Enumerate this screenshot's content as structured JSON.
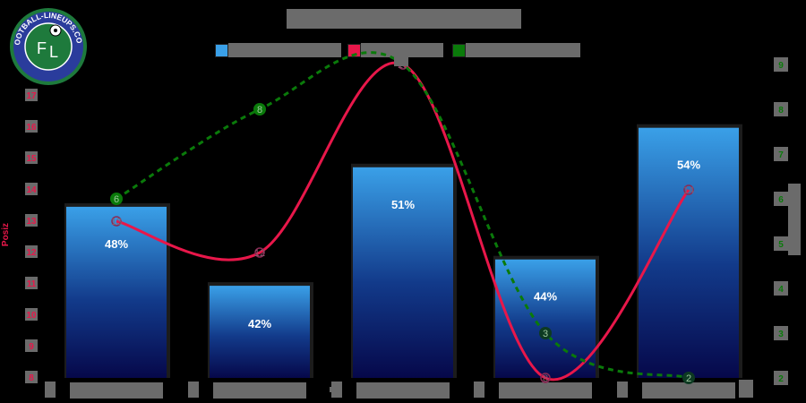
{
  "logo": {
    "text": "FOOTBALL-LINEUPS.COM",
    "initials": "FL"
  },
  "colors": {
    "bar_top": "#3aa0e8",
    "bar_bottom": "#06084a",
    "line_red": "#e8174a",
    "line_green": "#0a7a0a",
    "obscured": "#6b6b6b"
  },
  "chart_data": {
    "type": "bar",
    "title": "",
    "xlabel": "",
    "categories": [
      "",
      "",
      "",
      "",
      ""
    ],
    "series": [
      {
        "name": "",
        "type": "bar",
        "axis": "hidden-percent",
        "values": [
          48,
          42,
          51,
          44,
          54
        ],
        "labels": [
          "48%",
          "42%",
          "51%",
          "44%",
          "54%"
        ],
        "color": "#3aa0e8"
      },
      {
        "name": "",
        "type": "line",
        "axis": "left",
        "values": [
          13,
          12,
          18,
          8,
          14
        ],
        "color": "#e8174a"
      },
      {
        "name": "",
        "type": "line",
        "axis": "right",
        "style": "dashed",
        "values": [
          6,
          8,
          9,
          3,
          2
        ],
        "color": "#0a7a0a"
      }
    ],
    "left_axis": {
      "label": "Posiz",
      "ticks": [
        17,
        16,
        15,
        14,
        13,
        12,
        11,
        10,
        9,
        8
      ],
      "range": [
        8,
        17
      ]
    },
    "right_axis": {
      "label": "",
      "ticks": [
        9,
        8,
        7,
        6,
        5,
        4,
        3,
        2
      ],
      "range": [
        2,
        9
      ]
    },
    "grid": false,
    "legend_position": "top"
  },
  "legend": [
    {
      "label": "",
      "color": "#3aa0e8"
    },
    {
      "label": "",
      "color": "#e8174a"
    },
    {
      "label": "",
      "color": "#0a7a0a"
    }
  ]
}
